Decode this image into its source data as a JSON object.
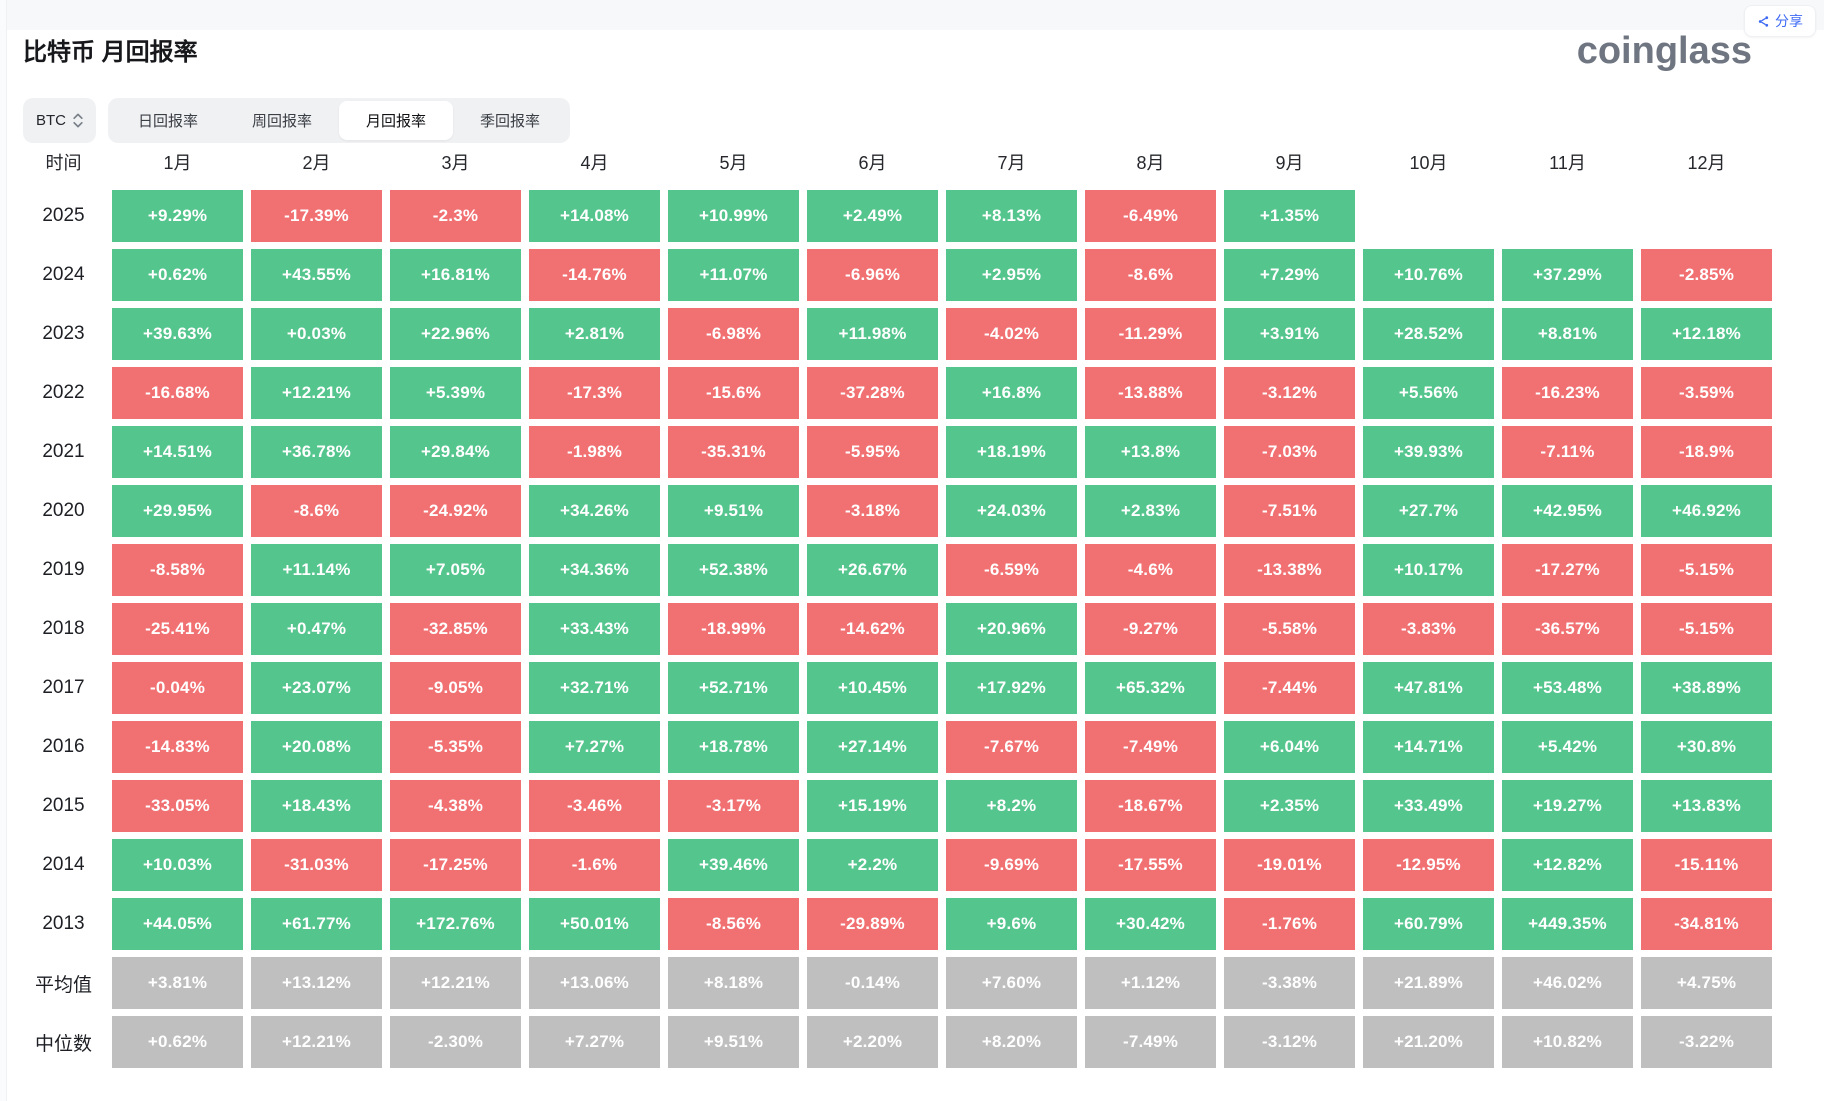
{
  "header": {
    "title": "比特币 月回报率",
    "share_label": "分享",
    "logo": "coinglass"
  },
  "controls": {
    "coin": "BTC",
    "tabs": [
      "日回报率",
      "周回报率",
      "月回报率",
      "季回报率"
    ],
    "active_tab": "月回报率"
  },
  "colors": {
    "positive": "#55c58e",
    "negative": "#f17173",
    "summary": "#bfbfbf",
    "accent_blue": "#3f6bf4",
    "logo_gray": "#6f7681"
  },
  "chart_data": {
    "type": "heatmap",
    "title": "比特币 月回报率",
    "row_label_header": "时间",
    "columns": [
      "1月",
      "2月",
      "3月",
      "4月",
      "5月",
      "6月",
      "7月",
      "8月",
      "9月",
      "10月",
      "11月",
      "12月"
    ],
    "rows": [
      {
        "label": "2025",
        "kind": "year",
        "values": [
          "+9.29%",
          "-17.39%",
          "-2.3%",
          "+14.08%",
          "+10.99%",
          "+2.49%",
          "+8.13%",
          "-6.49%",
          "+1.35%",
          "",
          "",
          ""
        ]
      },
      {
        "label": "2024",
        "kind": "year",
        "values": [
          "+0.62%",
          "+43.55%",
          "+16.81%",
          "-14.76%",
          "+11.07%",
          "-6.96%",
          "+2.95%",
          "-8.6%",
          "+7.29%",
          "+10.76%",
          "+37.29%",
          "-2.85%"
        ]
      },
      {
        "label": "2023",
        "kind": "year",
        "values": [
          "+39.63%",
          "+0.03%",
          "+22.96%",
          "+2.81%",
          "-6.98%",
          "+11.98%",
          "-4.02%",
          "-11.29%",
          "+3.91%",
          "+28.52%",
          "+8.81%",
          "+12.18%"
        ]
      },
      {
        "label": "2022",
        "kind": "year",
        "values": [
          "-16.68%",
          "+12.21%",
          "+5.39%",
          "-17.3%",
          "-15.6%",
          "-37.28%",
          "+16.8%",
          "-13.88%",
          "-3.12%",
          "+5.56%",
          "-16.23%",
          "-3.59%"
        ]
      },
      {
        "label": "2021",
        "kind": "year",
        "values": [
          "+14.51%",
          "+36.78%",
          "+29.84%",
          "-1.98%",
          "-35.31%",
          "-5.95%",
          "+18.19%",
          "+13.8%",
          "-7.03%",
          "+39.93%",
          "-7.11%",
          "-18.9%"
        ]
      },
      {
        "label": "2020",
        "kind": "year",
        "values": [
          "+29.95%",
          "-8.6%",
          "-24.92%",
          "+34.26%",
          "+9.51%",
          "-3.18%",
          "+24.03%",
          "+2.83%",
          "-7.51%",
          "+27.7%",
          "+42.95%",
          "+46.92%"
        ]
      },
      {
        "label": "2019",
        "kind": "year",
        "values": [
          "-8.58%",
          "+11.14%",
          "+7.05%",
          "+34.36%",
          "+52.38%",
          "+26.67%",
          "-6.59%",
          "-4.6%",
          "-13.38%",
          "+10.17%",
          "-17.27%",
          "-5.15%"
        ]
      },
      {
        "label": "2018",
        "kind": "year",
        "values": [
          "-25.41%",
          "+0.47%",
          "-32.85%",
          "+33.43%",
          "-18.99%",
          "-14.62%",
          "+20.96%",
          "-9.27%",
          "-5.58%",
          "-3.83%",
          "-36.57%",
          "-5.15%"
        ]
      },
      {
        "label": "2017",
        "kind": "year",
        "values": [
          "-0.04%",
          "+23.07%",
          "-9.05%",
          "+32.71%",
          "+52.71%",
          "+10.45%",
          "+17.92%",
          "+65.32%",
          "-7.44%",
          "+47.81%",
          "+53.48%",
          "+38.89%"
        ]
      },
      {
        "label": "2016",
        "kind": "year",
        "values": [
          "-14.83%",
          "+20.08%",
          "-5.35%",
          "+7.27%",
          "+18.78%",
          "+27.14%",
          "-7.67%",
          "-7.49%",
          "+6.04%",
          "+14.71%",
          "+5.42%",
          "+30.8%"
        ]
      },
      {
        "label": "2015",
        "kind": "year",
        "values": [
          "-33.05%",
          "+18.43%",
          "-4.38%",
          "-3.46%",
          "-3.17%",
          "+15.19%",
          "+8.2%",
          "-18.67%",
          "+2.35%",
          "+33.49%",
          "+19.27%",
          "+13.83%"
        ]
      },
      {
        "label": "2014",
        "kind": "year",
        "values": [
          "+10.03%",
          "-31.03%",
          "-17.25%",
          "-1.6%",
          "+39.46%",
          "+2.2%",
          "-9.69%",
          "-17.55%",
          "-19.01%",
          "-12.95%",
          "+12.82%",
          "-15.11%"
        ]
      },
      {
        "label": "2013",
        "kind": "year",
        "values": [
          "+44.05%",
          "+61.77%",
          "+172.76%",
          "+50.01%",
          "-8.56%",
          "-29.89%",
          "+9.6%",
          "+30.42%",
          "-1.76%",
          "+60.79%",
          "+449.35%",
          "-34.81%"
        ]
      },
      {
        "label": "平均值",
        "kind": "summary",
        "values": [
          "+3.81%",
          "+13.12%",
          "+12.21%",
          "+13.06%",
          "+8.18%",
          "-0.14%",
          "+7.60%",
          "+1.12%",
          "-3.38%",
          "+21.89%",
          "+46.02%",
          "+4.75%"
        ]
      },
      {
        "label": "中位数",
        "kind": "summary",
        "values": [
          "+0.62%",
          "+12.21%",
          "-2.30%",
          "+7.27%",
          "+9.51%",
          "+2.20%",
          "+8.20%",
          "-7.49%",
          "-3.12%",
          "+21.20%",
          "+10.82%",
          "-3.22%"
        ]
      }
    ]
  }
}
